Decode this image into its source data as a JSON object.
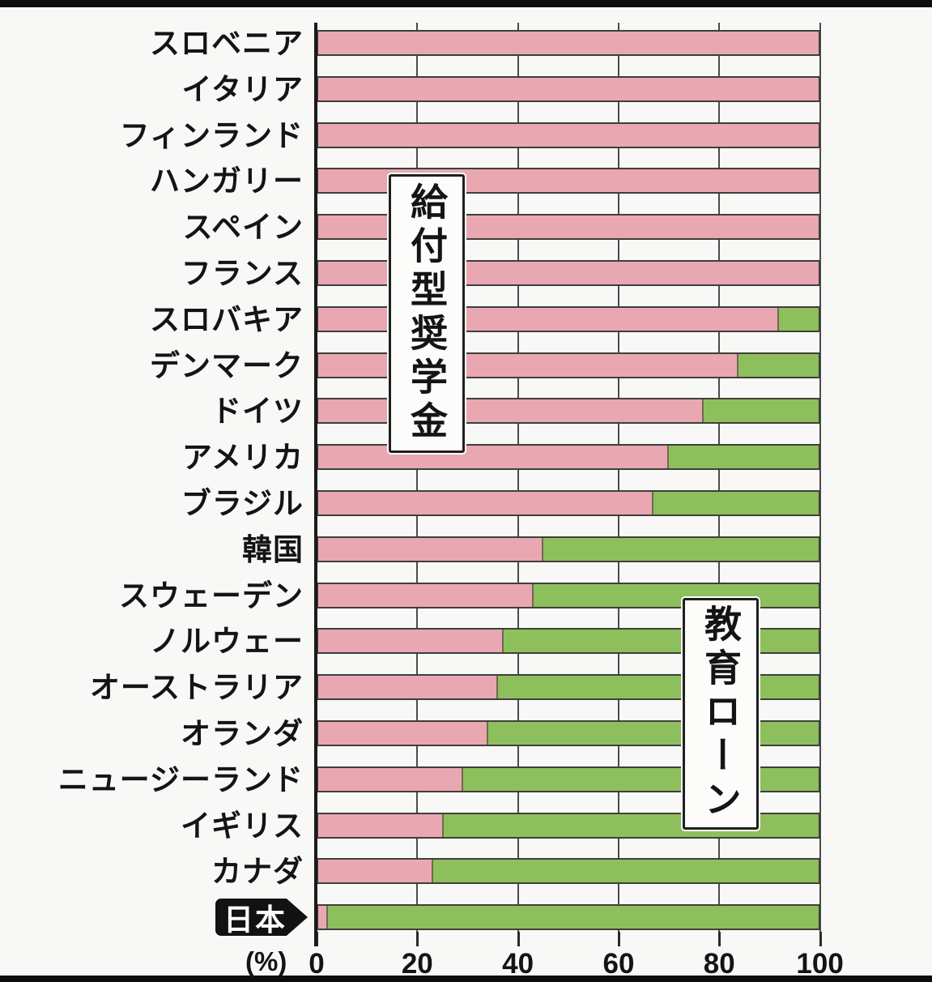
{
  "chart_data": {
    "type": "bar",
    "orientation": "horizontal",
    "stacked": true,
    "title": "",
    "xlabel": "(%)",
    "ylabel": "",
    "xlim": [
      0,
      100
    ],
    "x_ticks": [
      0,
      20,
      40,
      60,
      80,
      100
    ],
    "grid": true,
    "categories": [
      "スロベニア",
      "イタリア",
      "フィンランド",
      "ハンガリー",
      "スペイン",
      "フランス",
      "スロバキア",
      "デンマーク",
      "ドイツ",
      "アメリカ",
      "ブラジル",
      "韓国",
      "スウェーデン",
      "ノルウェー",
      "オーストラリア",
      "オランダ",
      "ニュージーランド",
      "イギリス",
      "カナダ",
      "日本"
    ],
    "series": [
      {
        "name": "給付型奨学金",
        "color": "#e9a8b1",
        "values": [
          100,
          100,
          100,
          100,
          100,
          100,
          92,
          84,
          77,
          70,
          67,
          45,
          43,
          37,
          36,
          34,
          29,
          25,
          23,
          2
        ]
      },
      {
        "name": "教育ローン",
        "color": "#8dc05c",
        "values": [
          0,
          0,
          0,
          0,
          0,
          0,
          8,
          16,
          23,
          30,
          33,
          55,
          57,
          63,
          64,
          66,
          71,
          75,
          77,
          98
        ]
      }
    ],
    "legend_position": "inline-annotation-boxes"
  },
  "annotations": {
    "grant_box_label": "給付型奨学金",
    "loan_box_label": "教育ローン"
  },
  "axis": {
    "unit_label": "(%)",
    "tick_labels": [
      "0",
      "20",
      "40",
      "60",
      "80",
      "100"
    ]
  },
  "highlight": {
    "country": "日本"
  },
  "colors": {
    "grant_pink": "#e9a8b1",
    "loan_green": "#8dc05c",
    "bar_border": "#3f3e3c",
    "gridline": "#4b4b4b",
    "background": "#f8f8f6",
    "badge_bg": "#121212",
    "badge_text": "#ffffff"
  }
}
